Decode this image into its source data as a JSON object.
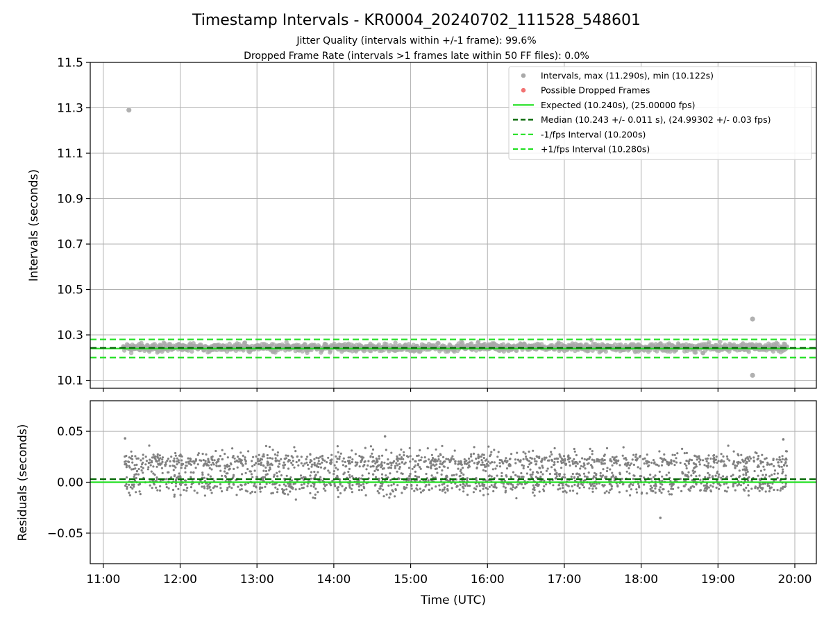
{
  "chart_data": {
    "type": "scatter",
    "title": "Timestamp Intervals - KR0004_20240702_111528_548601",
    "subtitle_lines": [
      "Jitter Quality (intervals within +/-1 frame): 99.6%",
      "Dropped Frame Rate (intervals >1 frames late within 50 FF files): 0.0%"
    ],
    "xlabel": "Time (UTC)",
    "x_ticks": [
      "11:00",
      "12:00",
      "13:00",
      "14:00",
      "15:00",
      "16:00",
      "17:00",
      "18:00",
      "19:00",
      "20:00"
    ],
    "x_range_hours": [
      10.83,
      20.28
    ],
    "data_span_hours": [
      11.26,
      19.9
    ],
    "grid": true,
    "legend_placement": "top-right",
    "panels": [
      {
        "name": "intervals",
        "ylabel": "Intervals (seconds)",
        "ylim": [
          10.065,
          11.5
        ],
        "y_ticks": [
          "10.1",
          "10.3",
          "10.5",
          "10.7",
          "10.9",
          "11.1",
          "11.3",
          "11.5"
        ],
        "lines": {
          "expected": 10.24,
          "median": 10.243,
          "minus_interval": 10.2,
          "plus_interval": 10.28
        },
        "outliers": [
          {
            "x": "11:20",
            "y": 11.29
          },
          {
            "x": "19:27",
            "y": 10.37
          },
          {
            "x": "19:27",
            "y": 10.122
          }
        ],
        "band": {
          "center": 10.245,
          "spread": 0.02
        }
      },
      {
        "name": "residuals",
        "ylabel": "Residuals (seconds)",
        "ylim": [
          -0.08,
          0.08
        ],
        "y_ticks": [
          "−0.05",
          "0.00",
          "0.05"
        ],
        "lines": {
          "expected": 0.0,
          "median": 0.003
        },
        "clusters": [
          {
            "center": 0.0,
            "spread": 0.006
          },
          {
            "center": 0.02,
            "spread": 0.004
          }
        ],
        "extremes": [
          {
            "x": "11:17",
            "y": 0.043
          },
          {
            "x": "14:40",
            "y": 0.045
          },
          {
            "x": "18:15",
            "y": -0.035
          },
          {
            "x": "19:51",
            "y": 0.042
          }
        ]
      }
    ],
    "legend": [
      {
        "label": "Intervals, max (11.290s), min (10.122s)",
        "marker": "dot",
        "color": "#9a9a9a"
      },
      {
        "label": "Possible Dropped Frames",
        "marker": "dot",
        "color": "#f05a5a"
      },
      {
        "label": "Expected (10.240s), (25.00000 fps)",
        "marker": "solid",
        "color": "#22e022"
      },
      {
        "label": "Median (10.243 +/- 0.011 s), (24.99302 +/- 0.03 fps)",
        "marker": "dashed",
        "color": "#006400"
      },
      {
        "label": "-1/fps Interval (10.200s)",
        "marker": "dashed",
        "color": "#22e022"
      },
      {
        "label": "+1/fps Interval (10.280s)",
        "marker": "dashed",
        "color": "#22e022"
      }
    ],
    "colors": {
      "points": "#808080",
      "expected": "#22e022",
      "median": "#006400",
      "interval": "#22e022"
    }
  }
}
